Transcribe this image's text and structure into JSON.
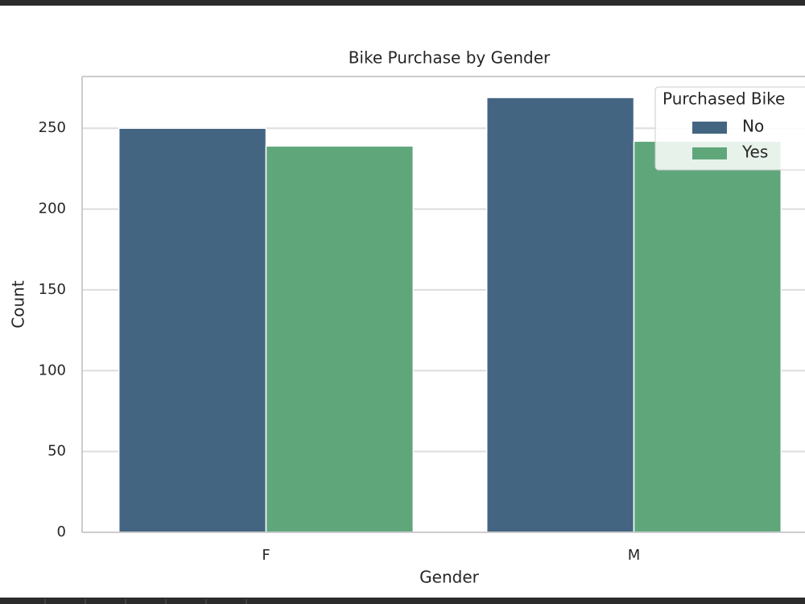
{
  "chart_data": {
    "type": "bar",
    "title": "Bike Purchase by Gender",
    "x_label": "Gender",
    "y_label": "Count",
    "categories": [
      "F",
      "M"
    ],
    "series": [
      {
        "name": "No",
        "color": "#446582",
        "values": [
          250,
          269
        ]
      },
      {
        "name": "Yes",
        "color": "#5fa77b",
        "values": [
          239,
          242
        ]
      }
    ],
    "ylim": [
      0,
      282
    ],
    "yticks": [
      0,
      50,
      100,
      150,
      200,
      250
    ],
    "grid": true,
    "legend_title": "Purchased Bike",
    "legend_position": "upper right"
  }
}
